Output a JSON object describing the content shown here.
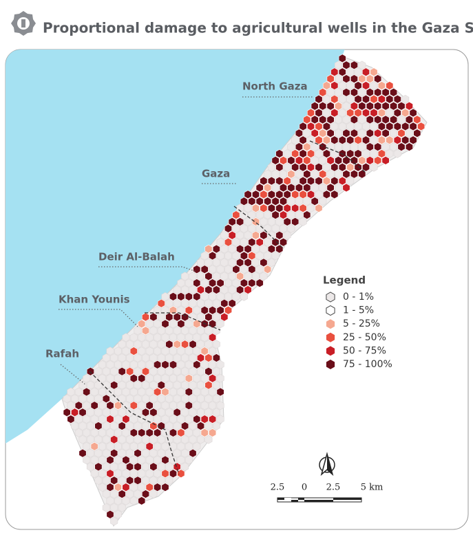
{
  "header": {
    "title": "Proportional damage to agricultural wells in the Gaza Strip"
  },
  "map": {
    "regions": [
      "North Gaza",
      "Gaza",
      "Deir Al-Balah",
      "Khan Younis",
      "Rafah"
    ],
    "legend": {
      "title": "Legend",
      "items": [
        {
          "label": "0 - 1%",
          "color": "#ece8e8"
        },
        {
          "label": "1 - 5%",
          "color": "#ffffff"
        },
        {
          "label": "5 - 25%",
          "color": "#f5a890"
        },
        {
          "label": "25 - 50%",
          "color": "#e9503f"
        },
        {
          "label": "50 - 75%",
          "color": "#c81e26"
        },
        {
          "label": "75 - 100%",
          "color": "#6a0e19"
        }
      ]
    },
    "scale_bar": {
      "labels": [
        "2.5",
        "0",
        "2.5",
        "5 km"
      ]
    }
  }
}
